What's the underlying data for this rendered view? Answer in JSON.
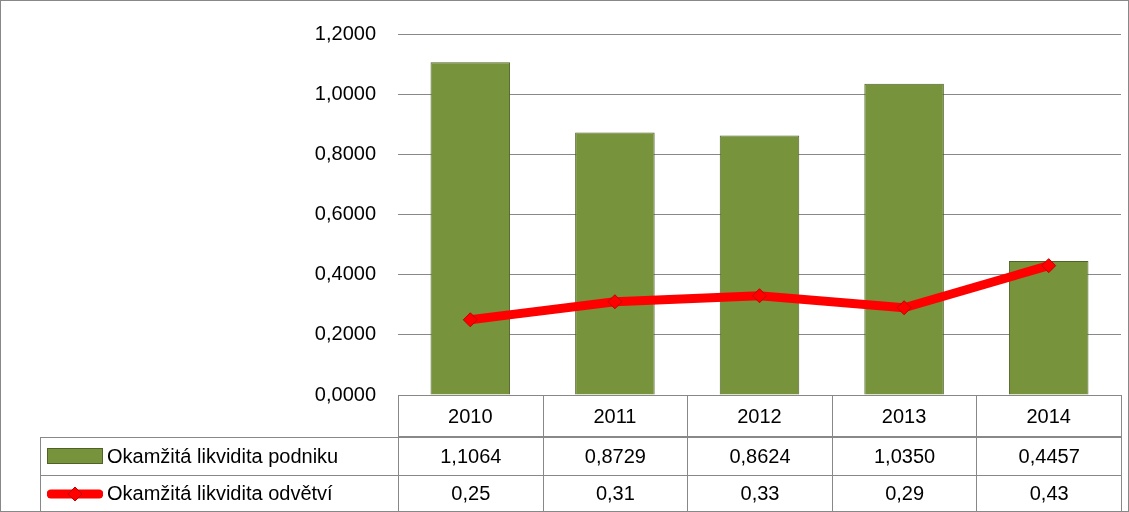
{
  "chart_data": {
    "type": "bar",
    "categories": [
      "2010",
      "2011",
      "2012",
      "2013",
      "2014"
    ],
    "series": [
      {
        "name": "Okamžitá likvidita podniku",
        "color": "#77933c",
        "values": [
          1.1064,
          0.8729,
          0.8624,
          1.035,
          0.4457
        ],
        "value_labels": [
          "1,1064",
          "0,8729",
          "0,8624",
          "1,0350",
          "0,4457"
        ]
      },
      {
        "name": "Okamžitá likvidita odvětví",
        "type": "line",
        "color": "#ff0000",
        "marker": "diamond",
        "values": [
          0.25,
          0.31,
          0.33,
          0.29,
          0.43
        ],
        "value_labels": [
          "0,25",
          "0,31",
          "0,33",
          "0,29",
          "0,43"
        ]
      }
    ],
    "ylim": [
      0,
      1.2
    ],
    "yticks": [
      {
        "value": 0,
        "label": "0,0000"
      },
      {
        "value": 0.2,
        "label": "0,2000"
      },
      {
        "value": 0.4,
        "label": "0,4000"
      },
      {
        "value": 0.6,
        "label": "0,6000"
      },
      {
        "value": 0.8,
        "label": "0,8000"
      },
      {
        "value": 1,
        "label": "1,0000"
      },
      {
        "value": 1.2,
        "label": "1,2000"
      }
    ],
    "grid": "y",
    "legend": "bottom"
  }
}
